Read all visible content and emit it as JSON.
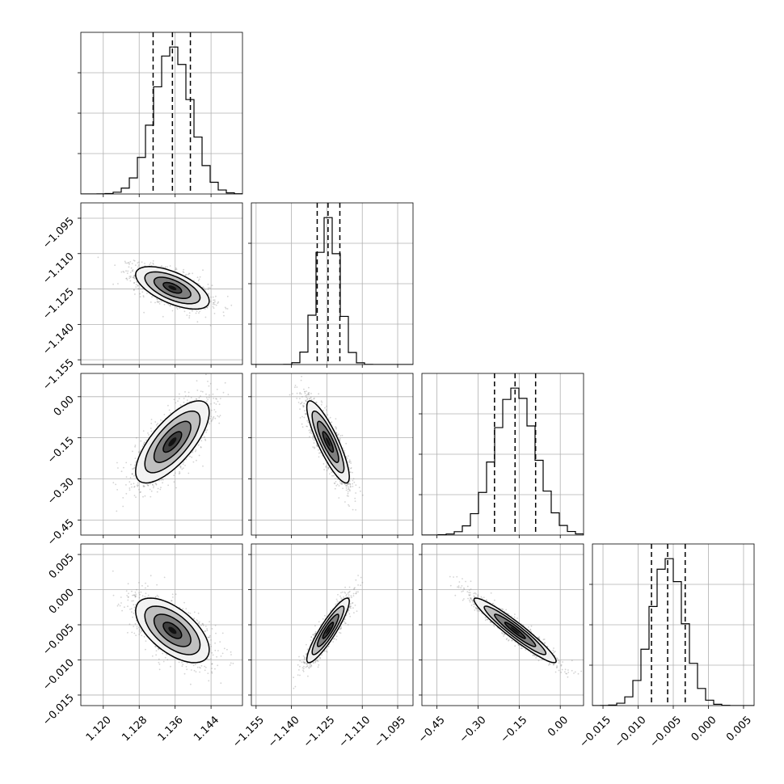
{
  "chart_data": {
    "type": "corner",
    "title": "",
    "grid": true,
    "params": [
      {
        "name": "",
        "range": [
          1.115,
          1.151
        ],
        "ticks": [
          1.12,
          1.128,
          1.136,
          1.144
        ],
        "tick_labels": [
          "1.120",
          "1.128",
          "1.136",
          "1.144"
        ],
        "mean": 1.1354,
        "sd": 0.0041,
        "quantiles": [
          1.1311,
          1.1354,
          1.1394
        ]
      },
      {
        "name": "",
        "range": [
          -1.157,
          -1.0885
        ],
        "ticks": [
          -1.155,
          -1.14,
          -1.125,
          -1.11,
          -1.095
        ],
        "tick_labels": [
          "−1.155",
          "−1.140",
          "−1.125",
          "−1.110",
          "−1.095"
        ],
        "mean": -1.1245,
        "sd": 0.0045,
        "quantiles": [
          -1.1291,
          -1.1245,
          -1.1195
        ]
      },
      {
        "name": "",
        "range": [
          -0.505,
          0.085
        ],
        "ticks": [
          -0.45,
          -0.3,
          -0.15,
          0.0
        ],
        "tick_labels": [
          "−0.45",
          "−0.30",
          "−0.15",
          "0.00"
        ],
        "mean": -0.165,
        "sd": 0.075,
        "quantiles": [
          -0.24,
          -0.165,
          -0.09
        ]
      },
      {
        "name": "",
        "range": [
          -0.0165,
          0.0065
        ],
        "ticks": [
          -0.015,
          -0.01,
          -0.005,
          0.0,
          0.005
        ],
        "tick_labels": [
          "−0.015",
          "−0.010",
          "−0.005",
          "0.000",
          "0.005"
        ],
        "mean": -0.0058,
        "sd": 0.0023,
        "quantiles": [
          -0.0081,
          -0.0058,
          -0.0033
        ]
      }
    ],
    "correlations": [
      [
        1,
        -0.62,
        0.72,
        -0.6
      ],
      [
        -0.62,
        1,
        -0.85,
        0.9
      ],
      [
        0.72,
        -0.85,
        1,
        -0.95
      ],
      [
        -0.6,
        0.9,
        -0.95,
        1
      ]
    ],
    "quantile_levels": [
      0.16,
      0.5,
      0.84
    ],
    "contour_levels_sigma": [
      0.5,
      1.0,
      1.5,
      2.0
    ],
    "histogram_bins": 20,
    "hist_y_ticks_labeled": false
  },
  "colors": {
    "line": "#000000",
    "grid": "#b0b0b0",
    "point": "#808080"
  }
}
